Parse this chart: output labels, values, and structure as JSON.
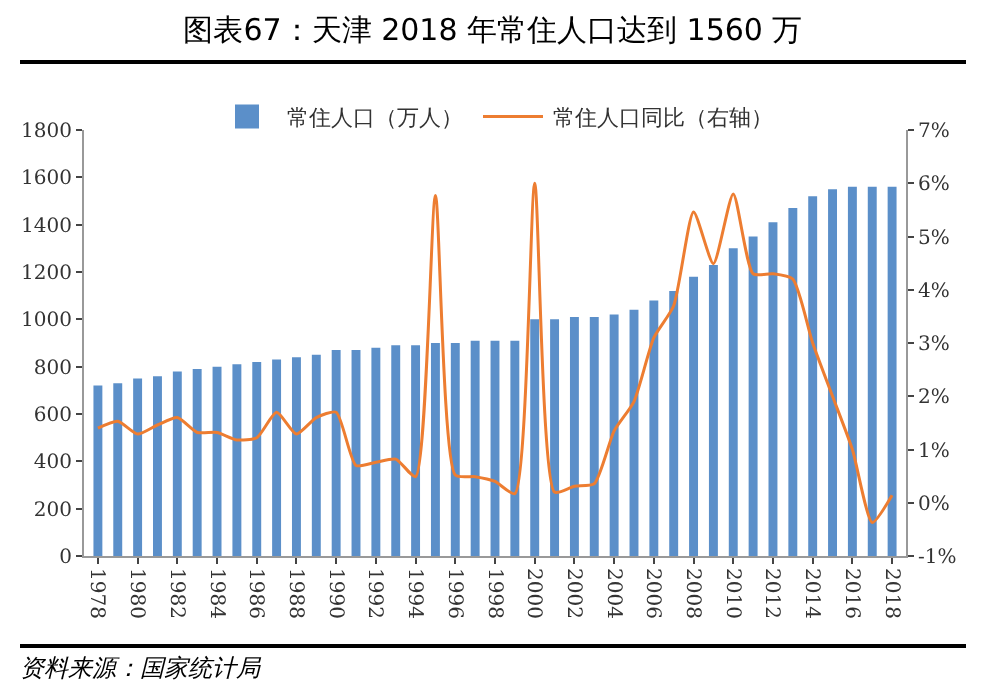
{
  "chart_data": {
    "type": "bar",
    "title": "图表67：天津 2018 年常住人口达到 1560 万",
    "categories": [
      "1978",
      null,
      "1980",
      null,
      "1982",
      null,
      "1984",
      null,
      "1986",
      null,
      "1988",
      null,
      "1990",
      null,
      "1992",
      null,
      "1994",
      null,
      "1996",
      null,
      "1998",
      null,
      "2000",
      null,
      "2002",
      null,
      "2004",
      null,
      "2006",
      null,
      "2008",
      null,
      "2010",
      null,
      "2012",
      null,
      "2014",
      null,
      "2016",
      null,
      "2018"
    ],
    "series": [
      {
        "name": "常住人口（万人）",
        "color": "#5b8fc9",
        "values": [
          720,
          730,
          750,
          760,
          780,
          790,
          800,
          810,
          820,
          830,
          840,
          850,
          870,
          870,
          880,
          890,
          890,
          900,
          900,
          910,
          910,
          910,
          1000,
          1000,
          1010,
          1010,
          1020,
          1040,
          1080,
          1120,
          1180,
          1230,
          1300,
          1350,
          1410,
          1470,
          1520,
          1550,
          1560,
          1560,
          1560
        ]
      },
      {
        "name": "常住人口同比（右轴）",
        "type": "line",
        "axis": "y2",
        "color": "#ed7d31",
        "values": [
          1.4,
          1.53,
          1.29,
          1.46,
          1.6,
          1.32,
          1.32,
          1.18,
          1.22,
          1.7,
          1.29,
          1.6,
          1.7,
          0.7,
          0.76,
          0.82,
          0.49,
          5.77,
          0.52,
          0.49,
          0.4,
          0.17,
          6.0,
          0.2,
          0.31,
          0.36,
          1.35,
          1.9,
          3.1,
          3.7,
          5.46,
          4.49,
          5.8,
          4.3,
          4.3,
          4.2,
          3.0,
          2.0,
          1.0,
          -0.37,
          0.14
        ]
      }
    ],
    "ylim": [
      0,
      1800
    ],
    "yticks": [
      0,
      200,
      400,
      600,
      800,
      1000,
      1200,
      1400,
      1600,
      1800
    ],
    "y2lim": [
      -1,
      7
    ],
    "y2ticks": [
      {
        "value": -1,
        "label": "-1%"
      },
      {
        "value": 0,
        "label": "0%"
      },
      {
        "value": 1,
        "label": "1%"
      },
      {
        "value": 2,
        "label": "2%"
      },
      {
        "value": 3,
        "label": "3%"
      },
      {
        "value": 4,
        "label": "4%"
      },
      {
        "value": 5,
        "label": "5%"
      },
      {
        "value": 6,
        "label": "6%"
      },
      {
        "value": 7,
        "label": "7%"
      }
    ],
    "grid": false,
    "legend": "top",
    "annotations": [
      "资料来源：国家统计局"
    ]
  }
}
